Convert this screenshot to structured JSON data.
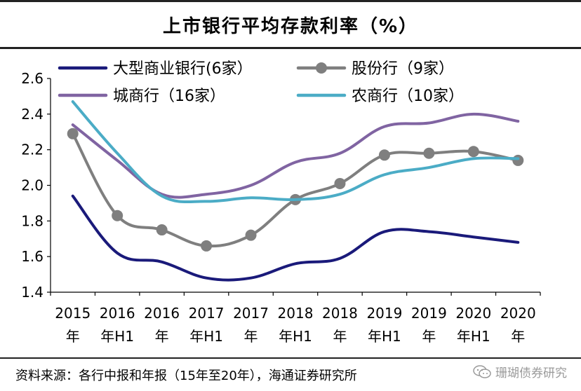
{
  "title": "上市银行平均存款利率（%）",
  "source": "资料来源：各行中报和年报（15年至20年），海通证券研究所",
  "watermark": "珊瑚债券研究",
  "watermark_icon": "wechat-icon",
  "chart_data": {
    "type": "line",
    "title": "上市银行平均存款利率（%）",
    "categories": [
      [
        "2015",
        "年"
      ],
      [
        "2016",
        "年H1"
      ],
      [
        "2016",
        "年"
      ],
      [
        "2017",
        "年H1"
      ],
      [
        "2017",
        "年"
      ],
      [
        "2018",
        "年H1"
      ],
      [
        "2018",
        "年"
      ],
      [
        "2019",
        "年H1"
      ],
      [
        "2019",
        "年"
      ],
      [
        "2020",
        "年H1"
      ],
      [
        "2020",
        "年"
      ]
    ],
    "ylim": [
      1.4,
      2.6
    ],
    "yticks": [
      "1.4",
      "1.6",
      "1.8",
      "2.0",
      "2.2",
      "2.4",
      "2.6"
    ],
    "xlabel": "",
    "ylabel": "",
    "grid": false,
    "legend_position": "top",
    "series": [
      {
        "name": "大型商业银行(6家）",
        "color": "#1a1a7a",
        "marker": false,
        "values": [
          1.94,
          1.62,
          1.57,
          1.48,
          1.48,
          1.56,
          1.59,
          1.74,
          1.74,
          1.71,
          1.68
        ]
      },
      {
        "name": "股份行（9家）",
        "color": "#7f7f7f",
        "marker": true,
        "values": [
          2.29,
          1.83,
          1.75,
          1.66,
          1.72,
          1.92,
          2.01,
          2.17,
          2.18,
          2.19,
          2.14
        ]
      },
      {
        "name": "城商行（16家）",
        "color": "#8064a2",
        "marker": false,
        "values": [
          2.34,
          2.14,
          1.95,
          1.95,
          2.0,
          2.13,
          2.18,
          2.33,
          2.35,
          2.4,
          2.36
        ]
      },
      {
        "name": "农商行（10家）",
        "color": "#4bacc6",
        "marker": false,
        "values": [
          2.47,
          2.18,
          1.94,
          1.91,
          1.93,
          1.92,
          1.95,
          2.06,
          2.1,
          2.15,
          2.15
        ]
      }
    ]
  }
}
